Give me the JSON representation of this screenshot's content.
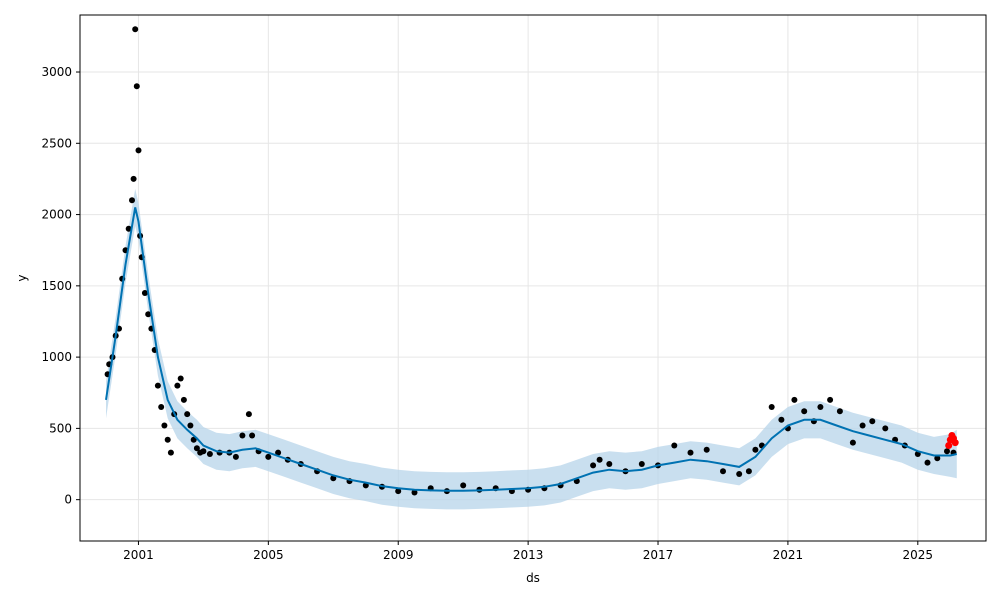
{
  "chart_data": {
    "type": "scatter",
    "title": "",
    "xlabel": "ds",
    "ylabel": "y",
    "xlim": [
      1999.2,
      2027.1
    ],
    "ylim": [
      -290,
      3400
    ],
    "grid": true,
    "x_ticks": [
      2001,
      2005,
      2009,
      2013,
      2017,
      2021,
      2025
    ],
    "x_tick_labels": [
      "2001",
      "2005",
      "2009",
      "2013",
      "2017",
      "2021",
      "2025"
    ],
    "y_ticks": [
      0,
      500,
      1000,
      1500,
      2000,
      2500,
      3000
    ],
    "y_tick_labels": [
      "0",
      "500",
      "1000",
      "1500",
      "2000",
      "2500",
      "3000"
    ],
    "colors": {
      "observed": "#000000",
      "forecast_line": "#0072B2",
      "uncertainty_band": "#b7d4ea",
      "recent_points": "#ff0000",
      "grid": "#e6e6e6"
    },
    "series": [
      {
        "kind": "observed",
        "x": [
          2000.05,
          2000.1,
          2000.2,
          2000.3,
          2000.4,
          2000.5,
          2000.6,
          2000.7,
          2000.8,
          2000.85,
          2000.9,
          2000.95,
          2001.0,
          2001.05,
          2001.1,
          2001.2,
          2001.3,
          2001.4,
          2001.5,
          2001.6,
          2001.7,
          2001.8,
          2001.9,
          2002.0,
          2002.1,
          2002.2,
          2002.3,
          2002.4,
          2002.5,
          2002.6,
          2002.7,
          2002.8,
          2002.9,
          2003.0,
          2003.2,
          2003.5,
          2003.8,
          2004.0,
          2004.2,
          2004.4,
          2004.5,
          2004.7,
          2005.0,
          2005.3,
          2005.6,
          2006.0,
          2006.5,
          2007.0,
          2007.5,
          2008.0,
          2008.5,
          2009.0,
          2009.5,
          2010.0,
          2010.5,
          2011.0,
          2011.5,
          2012.0,
          2012.5,
          2013.0,
          2013.5,
          2014.0,
          2014.5,
          2015.0,
          2015.2,
          2015.5,
          2016.0,
          2016.5,
          2017.0,
          2017.5,
          2018.0,
          2018.5,
          2019.0,
          2019.5,
          2019.8,
          2020.0,
          2020.2,
          2020.5,
          2020.8,
          2021.0,
          2021.2,
          2021.5,
          2021.8,
          2022.0,
          2022.3,
          2022.6,
          2023.0,
          2023.3,
          2023.6,
          2024.0,
          2024.3,
          2024.6,
          2025.0,
          2025.3,
          2025.6,
          2025.9,
          2026.1
        ],
        "y": [
          880,
          950,
          1000,
          1150,
          1200,
          1550,
          1750,
          1900,
          2100,
          2250,
          3300,
          2900,
          2450,
          1850,
          1700,
          1450,
          1300,
          1200,
          1050,
          800,
          650,
          520,
          420,
          330,
          600,
          800,
          850,
          700,
          600,
          520,
          420,
          360,
          330,
          340,
          320,
          330,
          330,
          300,
          450,
          600,
          450,
          340,
          300,
          330,
          280,
          250,
          200,
          150,
          130,
          100,
          90,
          60,
          50,
          80,
          60,
          100,
          70,
          80,
          60,
          70,
          80,
          100,
          130,
          240,
          280,
          250,
          200,
          250,
          240,
          380,
          330,
          350,
          200,
          180,
          200,
          350,
          380,
          650,
          560,
          500,
          700,
          620,
          550,
          650,
          700,
          620,
          400,
          520,
          550,
          500,
          420,
          380,
          320,
          260,
          290,
          340,
          330
        ]
      },
      {
        "kind": "forecast",
        "x": [
          2000.0,
          2000.3,
          2000.6,
          2000.9,
          2001.0,
          2001.3,
          2001.6,
          2001.9,
          2002.2,
          2002.5,
          2002.8,
          2003.0,
          2003.4,
          2003.8,
          2004.2,
          2004.6,
          2005.0,
          2005.5,
          2006.0,
          2006.5,
          2007.0,
          2007.5,
          2008.0,
          2008.5,
          2009.0,
          2009.5,
          2010.0,
          2010.5,
          2011.0,
          2011.5,
          2012.0,
          2012.5,
          2013.0,
          2013.5,
          2014.0,
          2014.5,
          2015.0,
          2015.5,
          2016.0,
          2016.5,
          2017.0,
          2017.5,
          2018.0,
          2018.5,
          2019.0,
          2019.5,
          2020.0,
          2020.5,
          2021.0,
          2021.5,
          2022.0,
          2022.5,
          2023.0,
          2023.5,
          2024.0,
          2024.5,
          2025.0,
          2025.5,
          2026.0,
          2026.2
        ],
        "y": [
          700,
          1150,
          1650,
          2050,
          1950,
          1450,
          1000,
          700,
          560,
          490,
          430,
          380,
          340,
          330,
          350,
          360,
          330,
          290,
          250,
          210,
          170,
          140,
          120,
          95,
          80,
          70,
          65,
          62,
          62,
          65,
          70,
          75,
          80,
          90,
          110,
          150,
          190,
          210,
          200,
          210,
          240,
          260,
          280,
          270,
          250,
          230,
          300,
          430,
          520,
          560,
          560,
          520,
          480,
          450,
          420,
          390,
          340,
          310,
          310,
          320
        ]
      },
      {
        "kind": "uncertainty",
        "x": [
          2000.0,
          2000.3,
          2000.6,
          2000.9,
          2001.0,
          2001.3,
          2001.6,
          2001.9,
          2002.2,
          2002.5,
          2002.8,
          2003.0,
          2003.4,
          2003.8,
          2004.2,
          2004.6,
          2005.0,
          2005.5,
          2006.0,
          2006.5,
          2007.0,
          2007.5,
          2008.0,
          2008.5,
          2009.0,
          2009.5,
          2010.0,
          2010.5,
          2011.0,
          2011.5,
          2012.0,
          2012.5,
          2013.0,
          2013.5,
          2014.0,
          2014.5,
          2015.0,
          2015.5,
          2016.0,
          2016.5,
          2017.0,
          2017.5,
          2018.0,
          2018.5,
          2019.0,
          2019.5,
          2020.0,
          2020.5,
          2021.0,
          2021.5,
          2022.0,
          2022.5,
          2023.0,
          2023.5,
          2024.0,
          2024.5,
          2025.0,
          2025.5,
          2026.0,
          2026.2
        ],
        "lower": [
          570,
          1020,
          1520,
          1920,
          1820,
          1320,
          870,
          570,
          430,
          360,
          300,
          250,
          210,
          200,
          220,
          230,
          200,
          160,
          120,
          80,
          40,
          10,
          -10,
          -35,
          -50,
          -60,
          -65,
          -68,
          -68,
          -65,
          -60,
          -55,
          -50,
          -40,
          -20,
          20,
          60,
          80,
          70,
          80,
          110,
          130,
          150,
          140,
          120,
          100,
          170,
          300,
          390,
          430,
          430,
          390,
          350,
          320,
          290,
          260,
          210,
          180,
          160,
          150
        ],
        "upper": [
          830,
          1280,
          1780,
          2180,
          2080,
          1580,
          1130,
          830,
          690,
          620,
          560,
          510,
          470,
          460,
          480,
          490,
          460,
          420,
          380,
          340,
          300,
          270,
          250,
          225,
          210,
          200,
          195,
          192,
          192,
          195,
          200,
          205,
          210,
          220,
          240,
          280,
          320,
          340,
          330,
          340,
          370,
          390,
          410,
          400,
          380,
          360,
          430,
          560,
          650,
          690,
          690,
          650,
          610,
          580,
          550,
          520,
          470,
          440,
          460,
          490
        ]
      },
      {
        "kind": "recent",
        "x": [
          2025.95,
          2026.0,
          2026.05,
          2026.1,
          2026.15
        ],
        "y": [
          380,
          420,
          450,
          430,
          400
        ]
      }
    ]
  }
}
